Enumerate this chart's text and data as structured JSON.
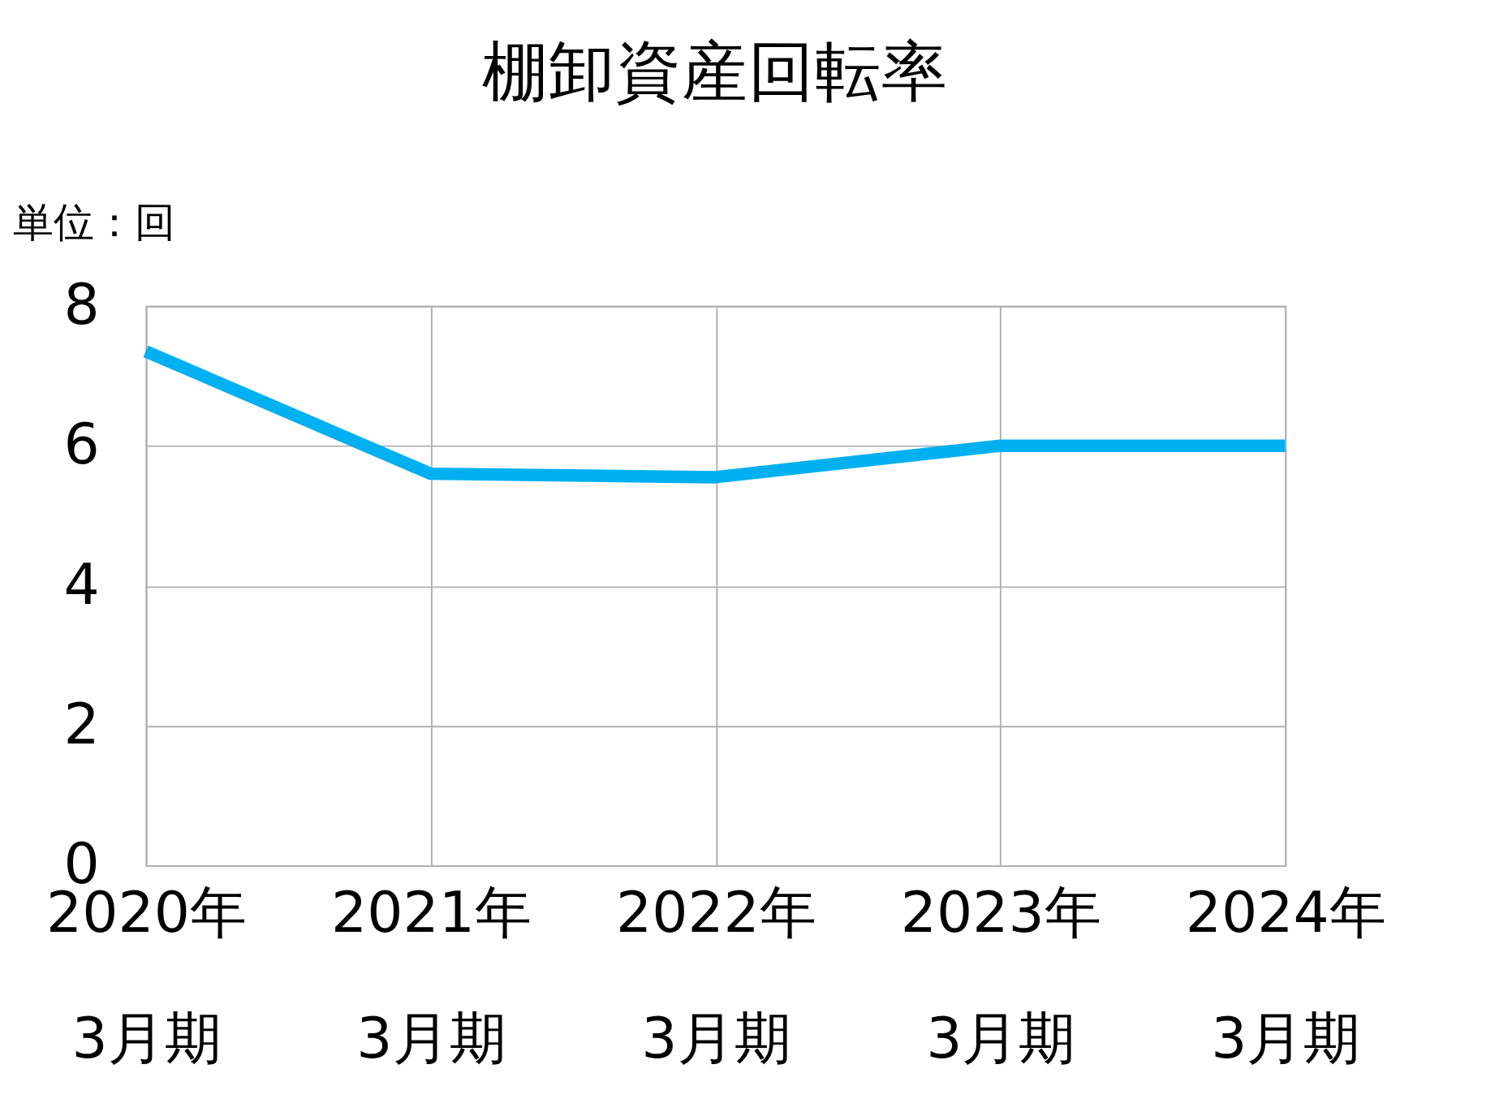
{
  "chart_data": {
    "type": "line",
    "title": "棚卸資産回転率",
    "ylabel": "単位：回",
    "categories": [
      "2020年\n3月期",
      "2021年\n3月期",
      "2022年\n3月期",
      "2023年\n3月期",
      "2024年\n3月期"
    ],
    "series": [
      {
        "color": "#00b0f0",
        "values": [
          7.35,
          5.6,
          5.55,
          6.0,
          6.0
        ]
      }
    ],
    "ylim": [
      0,
      8
    ],
    "yticks": [
      0,
      2,
      4,
      6,
      8
    ],
    "grid": true,
    "marker": "none",
    "line_style": "solid"
  }
}
